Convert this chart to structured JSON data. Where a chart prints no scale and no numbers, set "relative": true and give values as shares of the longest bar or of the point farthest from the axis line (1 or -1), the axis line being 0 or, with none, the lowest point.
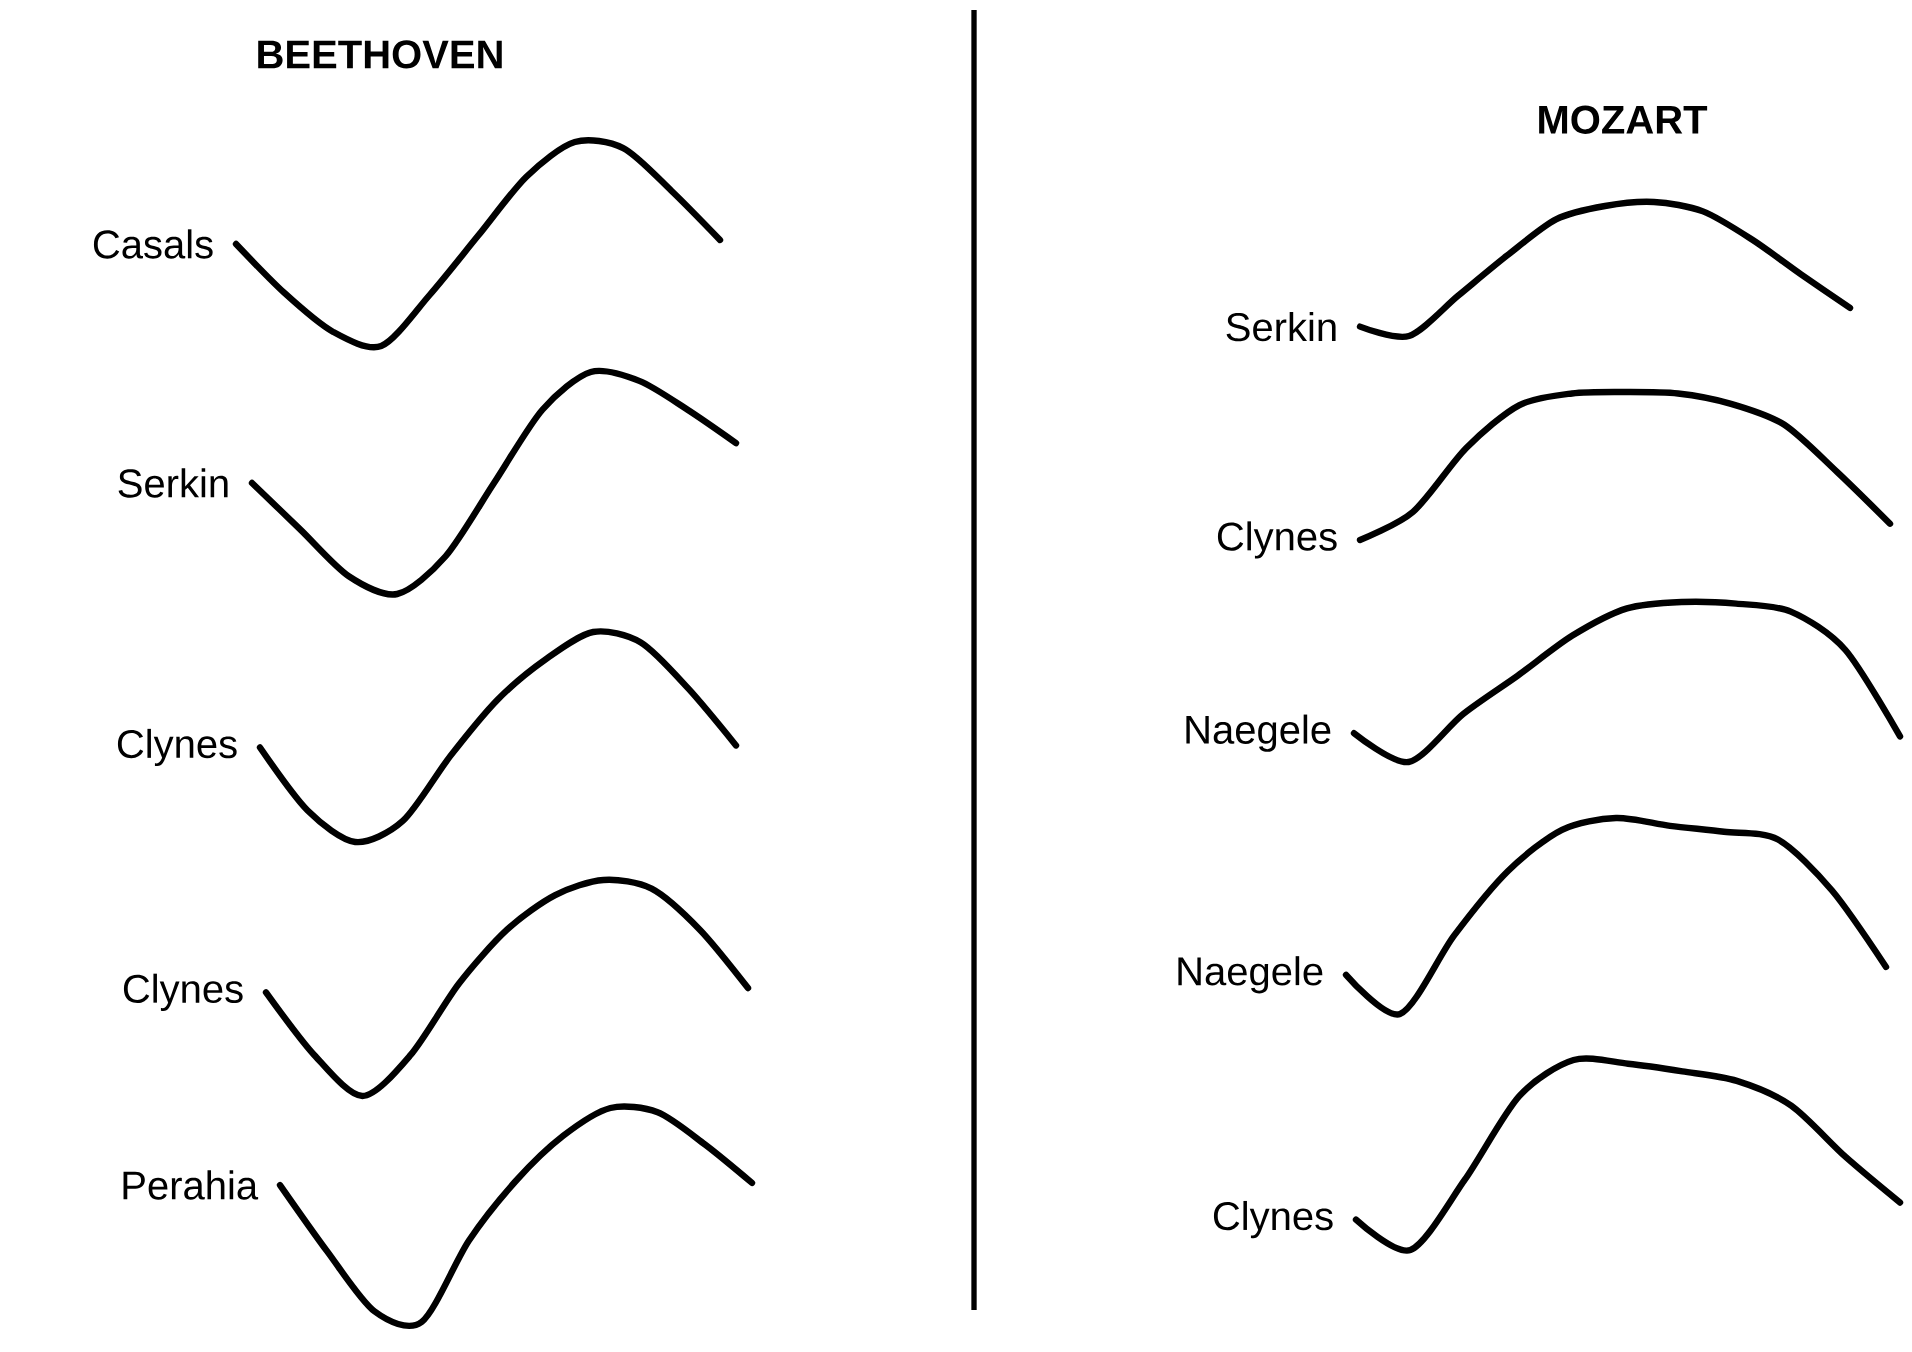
{
  "chart_data": [
    {
      "type": "line",
      "title": "BEETHOVEN",
      "relative": true,
      "categories": [
        null,
        null,
        null,
        null,
        null,
        null,
        null,
        null,
        null,
        null,
        null
      ],
      "series": [
        {
          "name": "Casals",
          "color": "#000000",
          "values": [
            0.5,
            0.26,
            0.07,
            0.0,
            0.25,
            0.54,
            0.83,
            1.0,
            0.97,
            0.76,
            0.52
          ]
        }
      ]
    },
    {
      "type": "line",
      "relative": true,
      "categories": [
        null,
        null,
        null,
        null,
        null,
        null,
        null,
        null,
        null,
        null,
        null
      ],
      "series": [
        {
          "name": "Serkin",
          "color": "#000000",
          "values": [
            0.5,
            0.29,
            0.08,
            0.0,
            0.17,
            0.5,
            0.83,
            1.0,
            0.96,
            0.83,
            0.68
          ]
        }
      ]
    },
    {
      "type": "line",
      "relative": true,
      "categories": [
        null,
        null,
        null,
        null,
        null,
        null,
        null,
        null,
        null,
        null,
        null
      ],
      "series": [
        {
          "name": "Clynes",
          "color": "#000000",
          "values": [
            0.45,
            0.15,
            0.0,
            0.1,
            0.41,
            0.68,
            0.87,
            1.0,
            0.95,
            0.73,
            0.46
          ]
        }
      ]
    },
    {
      "type": "line",
      "relative": true,
      "categories": [
        null,
        null,
        null,
        null,
        null,
        null,
        null,
        null,
        null,
        null,
        null
      ],
      "series": [
        {
          "name": "Clynes",
          "color": "#000000",
          "values": [
            0.48,
            0.19,
            0.0,
            0.19,
            0.52,
            0.77,
            0.93,
            1.0,
            0.96,
            0.77,
            0.5
          ]
        }
      ]
    },
    {
      "type": "line",
      "relative": true,
      "categories": [
        null,
        null,
        null,
        null,
        null,
        null,
        null,
        null,
        null,
        null,
        null
      ],
      "series": [
        {
          "name": "Perahia",
          "color": "#000000",
          "values": [
            0.64,
            0.33,
            0.05,
            0.0,
            0.38,
            0.66,
            0.87,
            1.0,
            0.98,
            0.83,
            0.65
          ]
        }
      ]
    },
    {
      "type": "line",
      "title": "MOZART",
      "relative": true,
      "categories": [
        null,
        null,
        null,
        null,
        null,
        null,
        null,
        null,
        null,
        null,
        null
      ],
      "series": [
        {
          "name": "Serkin",
          "color": "#000000",
          "values": [
            0.07,
            0.0,
            0.3,
            0.6,
            0.87,
            0.97,
            1.0,
            0.93,
            0.72,
            0.46,
            0.21
          ]
        }
      ]
    },
    {
      "type": "line",
      "relative": true,
      "categories": [
        null,
        null,
        null,
        null,
        null,
        null,
        null,
        null,
        null,
        null,
        null
      ],
      "series": [
        {
          "name": "Clynes",
          "color": "#000000",
          "values": [
            0.0,
            0.19,
            0.62,
            0.91,
            0.99,
            1.0,
            0.99,
            0.92,
            0.78,
            0.46,
            0.11
          ]
        }
      ]
    },
    {
      "type": "line",
      "relative": true,
      "categories": [
        null,
        null,
        null,
        null,
        null,
        null,
        null,
        null,
        null,
        null,
        null
      ],
      "series": [
        {
          "name": "Naegele",
          "color": "#000000",
          "values": [
            0.18,
            0.0,
            0.3,
            0.54,
            0.79,
            0.96,
            1.0,
            0.99,
            0.94,
            0.7,
            0.16
          ]
        }
      ]
    },
    {
      "type": "line",
      "relative": true,
      "categories": [
        null,
        null,
        null,
        null,
        null,
        null,
        null,
        null,
        null,
        null,
        null
      ],
      "series": [
        {
          "name": "Naegele",
          "color": "#000000",
          "values": [
            0.2,
            0.0,
            0.4,
            0.73,
            0.94,
            1.0,
            0.96,
            0.93,
            0.89,
            0.63,
            0.24
          ]
        }
      ]
    },
    {
      "type": "line",
      "relative": true,
      "categories": [
        null,
        null,
        null,
        null,
        null,
        null,
        null,
        null,
        null,
        null,
        null
      ],
      "series": [
        {
          "name": "Clynes",
          "color": "#000000",
          "values": [
            0.16,
            0.0,
            0.37,
            0.81,
            1.0,
            0.98,
            0.94,
            0.89,
            0.76,
            0.49,
            0.25
          ]
        }
      ]
    }
  ]
}
